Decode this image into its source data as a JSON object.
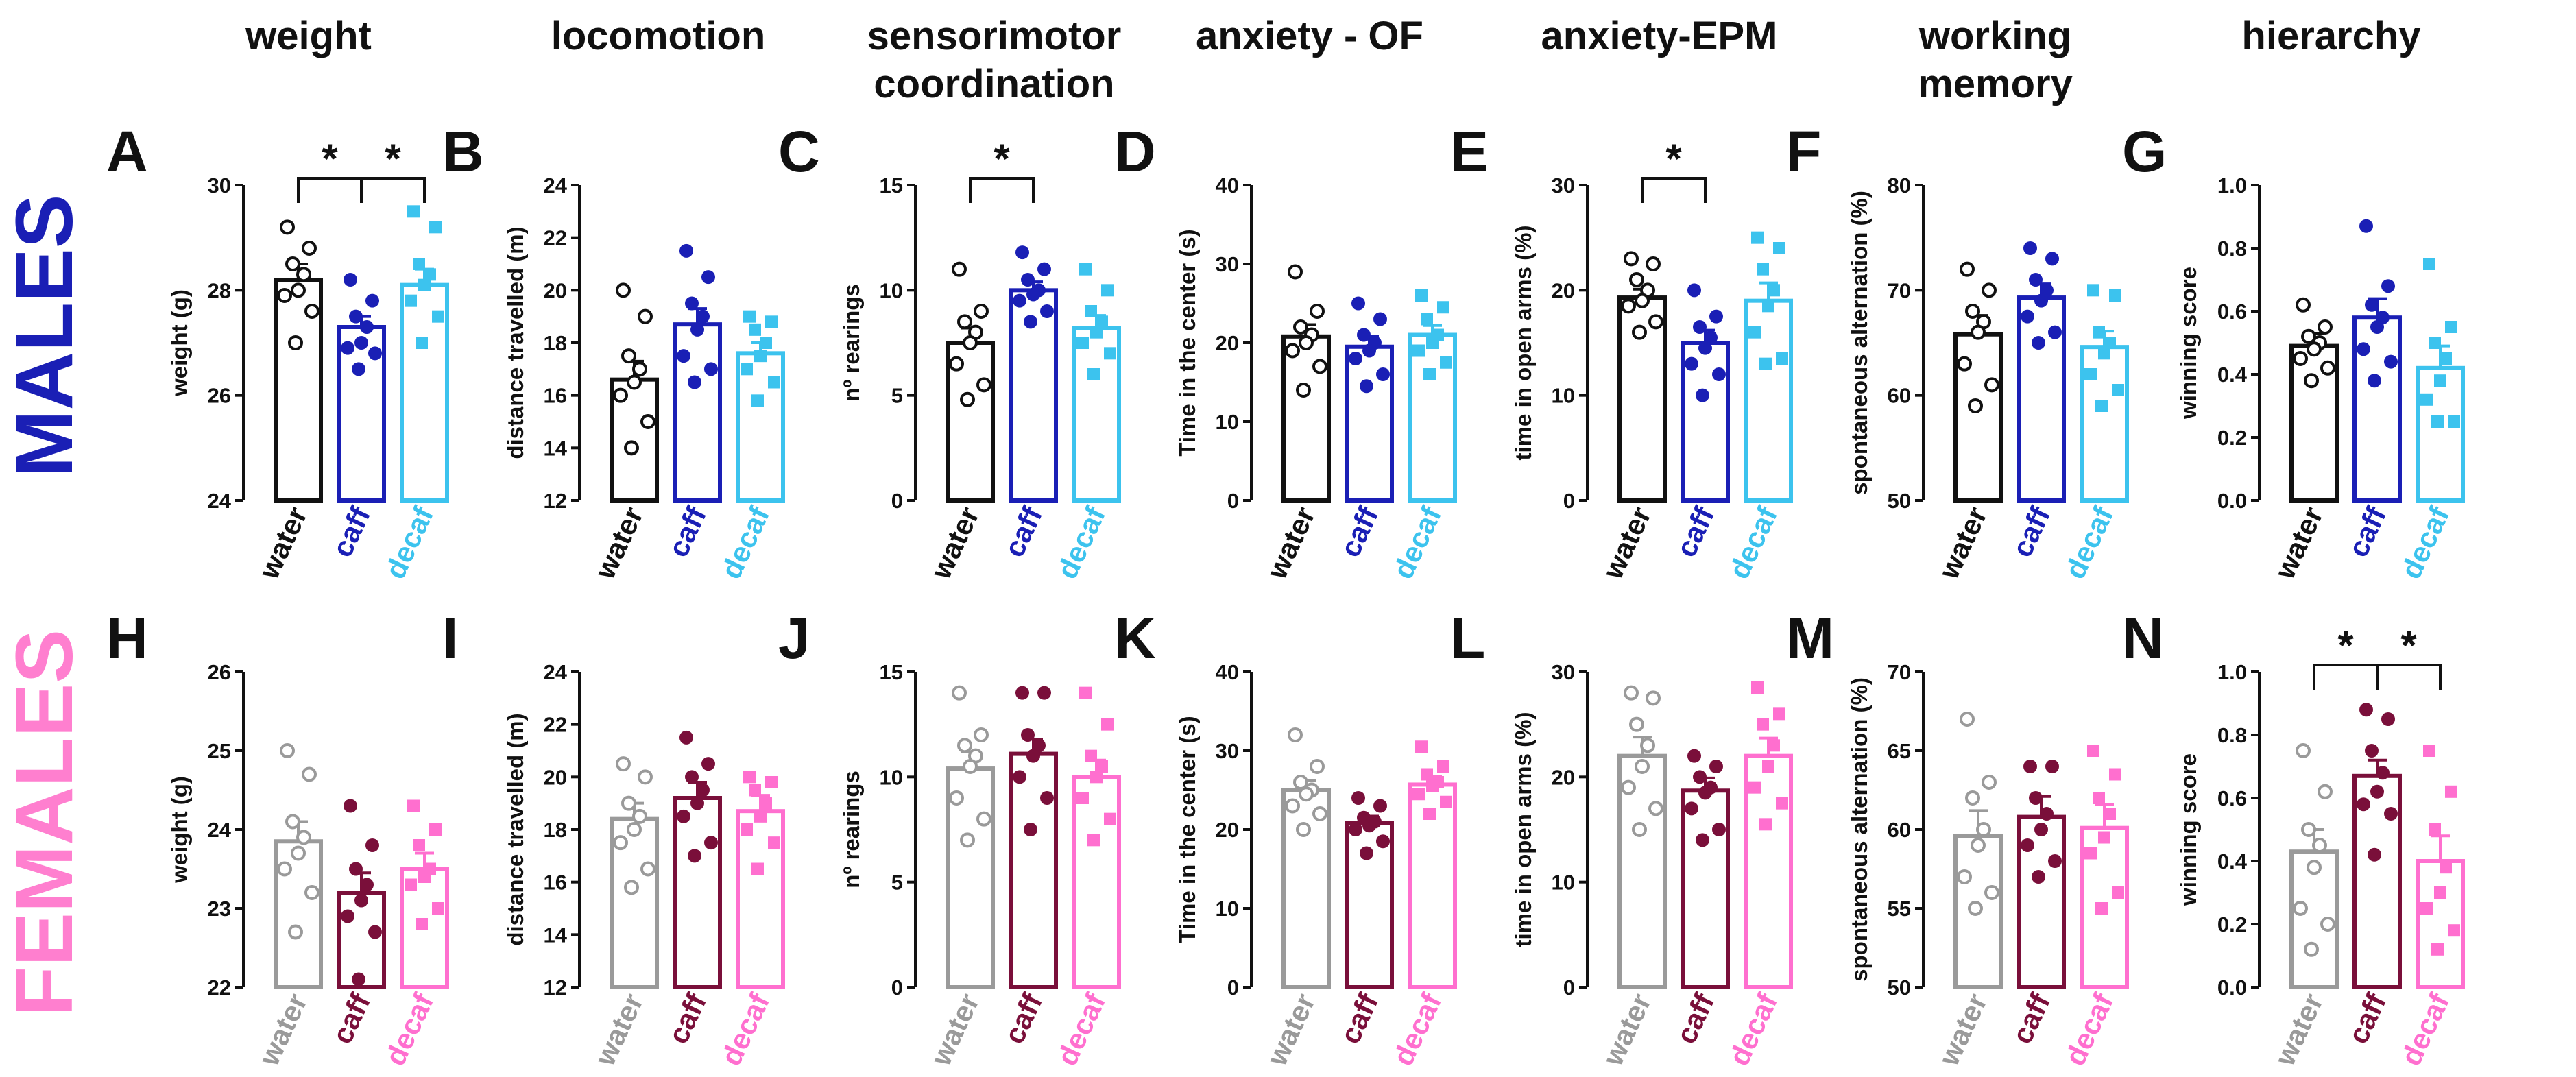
{
  "columns": [
    "weight",
    "locomotion",
    "sensorimotor coordination",
    "anxiety - OF",
    "anxiety-EPM",
    "working memory",
    "hierarchy"
  ],
  "rows": [
    {
      "label": "MALES",
      "color": "#1a1fb5"
    },
    {
      "label": "FEMALES",
      "color": "#ff7fcf"
    }
  ],
  "colors": {
    "males": {
      "water": "#111111",
      "caff": "#1a1fb5",
      "decaf": "#3cc3ee"
    },
    "females": {
      "water": "#9a9a9a",
      "caff": "#7a0f3a",
      "decaf": "#ff6fcf"
    }
  },
  "chart_data": [
    {
      "panel": "A",
      "type": "bar",
      "sex": "males",
      "ylabel": "weight (g)",
      "ylim": [
        24,
        30
      ],
      "ticks": [
        24,
        26,
        28,
        30
      ],
      "categories": [
        "water",
        "caff",
        "decaf"
      ],
      "values": [
        28.2,
        27.3,
        28.1
      ],
      "errors": [
        0.3,
        0.2,
        0.3
      ],
      "points": [
        [
          29.2,
          28.8,
          28.5,
          28.3,
          28.0,
          27.9,
          27.6,
          27.0
        ],
        [
          28.2,
          27.8,
          27.5,
          27.3,
          27.0,
          26.9,
          26.8,
          26.5
        ],
        [
          29.5,
          29.2,
          28.5,
          28.3,
          28.1,
          27.8,
          27.5,
          27.0
        ]
      ],
      "sig": [
        {
          "from": 0,
          "to": 1,
          "label": "*"
        },
        {
          "from": 1,
          "to": 2,
          "label": "*"
        }
      ]
    },
    {
      "panel": "B",
      "type": "bar",
      "sex": "males",
      "ylabel": "distance travelled (m)",
      "ylim": [
        12,
        24
      ],
      "ticks": [
        12,
        14,
        16,
        18,
        20,
        22,
        24
      ],
      "categories": [
        "water",
        "caff",
        "decaf"
      ],
      "values": [
        16.6,
        18.7,
        17.6
      ],
      "errors": [
        0.7,
        0.6,
        0.4
      ],
      "points": [
        [
          20.0,
          19.0,
          17.5,
          17.0,
          16.5,
          16.0,
          15.0,
          14.0
        ],
        [
          21.5,
          20.5,
          19.5,
          19.0,
          18.5,
          17.5,
          17.0,
          16.5
        ],
        [
          19.0,
          18.8,
          18.5,
          18.0,
          17.5,
          17.0,
          16.5,
          15.8
        ]
      ],
      "sig": []
    },
    {
      "panel": "C",
      "type": "bar",
      "sex": "males",
      "ylabel": "nº rearings",
      "ylim": [
        0,
        15
      ],
      "ticks": [
        0,
        5,
        10,
        15
      ],
      "categories": [
        "water",
        "caff",
        "decaf"
      ],
      "values": [
        7.5,
        10.0,
        8.2
      ],
      "errors": [
        0.7,
        0.4,
        0.6
      ],
      "points": [
        [
          11.0,
          9.0,
          8.5,
          8.0,
          7.5,
          6.5,
          5.5,
          4.8
        ],
        [
          11.8,
          11.0,
          10.5,
          10.0,
          9.8,
          9.5,
          9.0,
          8.5
        ],
        [
          11.0,
          10.0,
          9.0,
          8.5,
          8.0,
          7.5,
          7.0,
          6.0
        ]
      ],
      "sig": [
        {
          "from": 0,
          "to": 1,
          "label": "*"
        }
      ]
    },
    {
      "panel": "D",
      "type": "bar",
      "sex": "males",
      "ylabel": "Time in the center (s)",
      "ylim": [
        0,
        40
      ],
      "ticks": [
        0,
        10,
        20,
        30,
        40
      ],
      "categories": [
        "water",
        "caff",
        "decaf"
      ],
      "values": [
        20.8,
        19.5,
        21.0
      ],
      "errors": [
        1.5,
        1.3,
        1.2
      ],
      "points": [
        [
          29.0,
          24.0,
          22.0,
          21.0,
          20.0,
          19.0,
          17.0,
          14.0
        ],
        [
          25.0,
          23.0,
          21.0,
          20.0,
          19.0,
          18.0,
          16.0,
          14.5
        ],
        [
          26.0,
          24.5,
          23.0,
          21.0,
          20.0,
          19.0,
          17.5,
          16.0
        ]
      ],
      "sig": []
    },
    {
      "panel": "E",
      "type": "bar",
      "sex": "males",
      "ylabel": "time in open arms (%)",
      "ylim": [
        0,
        30
      ],
      "ticks": [
        0,
        10,
        20,
        30
      ],
      "categories": [
        "water",
        "caff",
        "decaf"
      ],
      "values": [
        19.3,
        15.0,
        19.0
      ],
      "errors": [
        0.8,
        1.2,
        1.7
      ],
      "points": [
        [
          23.0,
          22.5,
          21.0,
          20.0,
          19.0,
          18.5,
          17.0,
          16.0
        ],
        [
          20.0,
          17.5,
          16.5,
          15.5,
          14.5,
          13.0,
          12.0,
          10.0
        ],
        [
          25.0,
          24.0,
          22.0,
          20.0,
          18.5,
          16.0,
          13.5,
          13.0
        ]
      ],
      "sig": [
        {
          "from": 0,
          "to": 1,
          "label": "*"
        }
      ]
    },
    {
      "panel": "F",
      "type": "bar",
      "sex": "males",
      "ylabel": "spontaneous alternation (%)",
      "ylim": [
        50,
        80
      ],
      "ticks": [
        50,
        60,
        70,
        80
      ],
      "categories": [
        "water",
        "caff",
        "decaf"
      ],
      "values": [
        65.8,
        69.3,
        64.6
      ],
      "errors": [
        1.8,
        1.3,
        1.5
      ],
      "points": [
        [
          72.0,
          70.0,
          68.0,
          67.0,
          66.0,
          63.0,
          61.0,
          59.0
        ],
        [
          74.0,
          73.0,
          71.0,
          70.0,
          69.0,
          67.5,
          66.0,
          65.0
        ],
        [
          70.0,
          69.5,
          66.0,
          65.0,
          64.0,
          62.0,
          60.5,
          59.0
        ]
      ],
      "sig": []
    },
    {
      "panel": "G",
      "type": "bar",
      "sex": "males",
      "ylabel": "winning score",
      "ylim": [
        0,
        1
      ],
      "ticks": [
        0.0,
        0.2,
        0.4,
        0.6,
        0.8,
        1.0
      ],
      "categories": [
        "water",
        "caff",
        "decaf"
      ],
      "values": [
        0.49,
        0.58,
        0.42
      ],
      "errors": [
        0.04,
        0.06,
        0.07
      ],
      "points": [
        [
          0.62,
          0.55,
          0.52,
          0.5,
          0.48,
          0.45,
          0.42,
          0.38
        ],
        [
          0.87,
          0.68,
          0.62,
          0.58,
          0.55,
          0.48,
          0.44,
          0.38
        ],
        [
          0.75,
          0.55,
          0.5,
          0.45,
          0.38,
          0.32,
          0.25,
          0.25
        ]
      ],
      "sig": []
    },
    {
      "panel": "H",
      "type": "bar",
      "sex": "females",
      "ylabel": "weight (g)",
      "ylim": [
        22,
        26
      ],
      "ticks": [
        22,
        23,
        24,
        25,
        26
      ],
      "categories": [
        "water",
        "caff",
        "decaf"
      ],
      "values": [
        23.85,
        23.2,
        23.5
      ],
      "errors": [
        0.25,
        0.25,
        0.2
      ],
      "points": [
        [
          25.0,
          24.7,
          24.1,
          23.9,
          23.7,
          23.5,
          23.2,
          22.7
        ],
        [
          24.3,
          23.8,
          23.5,
          23.3,
          23.1,
          22.9,
          22.7,
          22.1
        ],
        [
          24.3,
          24.0,
          23.8,
          23.5,
          23.4,
          23.3,
          23.0,
          22.8
        ]
      ],
      "sig": []
    },
    {
      "panel": "I",
      "type": "bar",
      "sex": "females",
      "ylabel": "distance travelled (m)",
      "ylim": [
        12,
        24
      ],
      "ticks": [
        12,
        14,
        16,
        18,
        20,
        22,
        24
      ],
      "categories": [
        "water",
        "caff",
        "decaf"
      ],
      "values": [
        18.4,
        19.2,
        18.7
      ],
      "errors": [
        0.6,
        0.6,
        0.6
      ],
      "points": [
        [
          20.5,
          20.0,
          19.0,
          18.5,
          18.0,
          17.5,
          16.5,
          15.8
        ],
        [
          21.5,
          20.5,
          20.0,
          19.5,
          19.0,
          18.5,
          17.5,
          17.0
        ],
        [
          20.0,
          19.8,
          19.5,
          19.0,
          18.5,
          18.0,
          17.5,
          16.5
        ]
      ],
      "sig": []
    },
    {
      "panel": "J",
      "type": "bar",
      "sex": "females",
      "ylabel": "nº rearings",
      "ylim": [
        0,
        15
      ],
      "ticks": [
        0,
        5,
        10,
        15
      ],
      "categories": [
        "water",
        "caff",
        "decaf"
      ],
      "values": [
        10.4,
        11.1,
        10.0
      ],
      "errors": [
        0.8,
        0.7,
        0.8
      ],
      "points": [
        [
          14.0,
          12.0,
          11.5,
          11.0,
          10.5,
          9.0,
          8.0,
          7.0
        ],
        [
          14.0,
          14.0,
          12.0,
          11.5,
          11.0,
          10.0,
          9.0,
          7.5
        ],
        [
          14.0,
          12.5,
          11.0,
          10.5,
          10.0,
          9.0,
          8.0,
          7.0
        ]
      ],
      "sig": []
    },
    {
      "panel": "K",
      "type": "bar",
      "sex": "females",
      "ylabel": "Time in the center (s)",
      "ylim": [
        0,
        40
      ],
      "ticks": [
        0,
        10,
        20,
        30,
        40
      ],
      "categories": [
        "water",
        "caff",
        "decaf"
      ],
      "values": [
        25.0,
        20.8,
        25.7
      ],
      "errors": [
        1.2,
        0.9,
        1.0
      ],
      "points": [
        [
          32.0,
          28.0,
          26.0,
          25.0,
          24.5,
          23.0,
          22.0,
          20.0
        ],
        [
          24.0,
          23.0,
          21.5,
          21.0,
          20.5,
          20.0,
          18.5,
          17.0
        ],
        [
          30.5,
          28.0,
          27.0,
          26.0,
          25.5,
          24.5,
          23.5,
          22.0
        ]
      ],
      "sig": []
    },
    {
      "panel": "L",
      "type": "bar",
      "sex": "females",
      "ylabel": "time in open arms (%)",
      "ylim": [
        0,
        30
      ],
      "ticks": [
        0,
        10,
        20,
        30
      ],
      "categories": [
        "water",
        "caff",
        "decaf"
      ],
      "values": [
        22.0,
        18.7,
        22.0
      ],
      "errors": [
        1.8,
        1.2,
        1.7
      ],
      "points": [
        [
          28.0,
          27.5,
          25.0,
          23.0,
          21.0,
          19.0,
          17.0,
          15.0
        ],
        [
          22.0,
          21.0,
          20.0,
          19.0,
          18.5,
          17.0,
          15.0,
          14.0
        ],
        [
          28.5,
          26.0,
          25.0,
          23.0,
          21.0,
          19.0,
          17.5,
          15.5
        ]
      ],
      "sig": []
    },
    {
      "panel": "M",
      "type": "bar",
      "sex": "females",
      "ylabel": "spontaneous alternation (%)",
      "ylim": [
        50,
        70
      ],
      "ticks": [
        50,
        55,
        60,
        65,
        70
      ],
      "categories": [
        "water",
        "caff",
        "decaf"
      ],
      "values": [
        59.6,
        60.8,
        60.1
      ],
      "errors": [
        1.6,
        1.3,
        1.5
      ],
      "points": [
        [
          67.0,
          63.0,
          62.0,
          60.0,
          59.0,
          57.0,
          56.0,
          55.0
        ],
        [
          64.0,
          64.0,
          62.0,
          61.0,
          60.0,
          59.0,
          58.0,
          57.0
        ],
        [
          65.0,
          63.5,
          62.0,
          61.0,
          59.5,
          58.5,
          56.0,
          55.0
        ]
      ],
      "sig": []
    },
    {
      "panel": "N",
      "type": "bar",
      "sex": "females",
      "ylabel": "winning score",
      "ylim": [
        0,
        1
      ],
      "ticks": [
        0.0,
        0.2,
        0.4,
        0.6,
        0.8,
        1.0
      ],
      "categories": [
        "water",
        "caff",
        "decaf"
      ],
      "values": [
        0.43,
        0.67,
        0.4
      ],
      "errors": [
        0.07,
        0.05,
        0.08
      ],
      "points": [
        [
          0.75,
          0.62,
          0.5,
          0.45,
          0.38,
          0.25,
          0.2,
          0.12
        ],
        [
          0.88,
          0.85,
          0.75,
          0.68,
          0.62,
          0.58,
          0.55,
          0.42
        ],
        [
          0.75,
          0.62,
          0.5,
          0.38,
          0.3,
          0.25,
          0.18,
          0.12
        ]
      ],
      "sig": [
        {
          "from": 0,
          "to": 1,
          "label": "*"
        },
        {
          "from": 1,
          "to": 2,
          "label": "*"
        }
      ]
    }
  ]
}
